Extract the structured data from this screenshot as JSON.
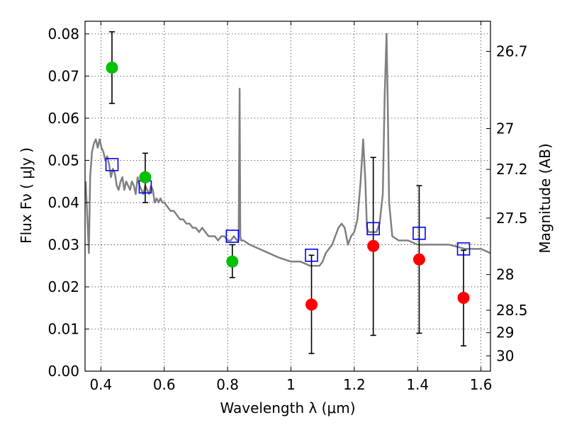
{
  "chart_data": {
    "type": "scatter",
    "xlabel": "Wavelength  λ (μm)",
    "ylabel": "Flux  Fν  ( μJy )",
    "ylabel_right": "Magnitude (AB)",
    "xlim": [
      0.35,
      1.63
    ],
    "ylim": [
      0.0,
      0.083
    ],
    "grid": true,
    "x_ticks": [
      {
        "value": 0.4,
        "label": "0.4"
      },
      {
        "value": 0.6,
        "label": "0.6"
      },
      {
        "value": 0.8,
        "label": "0.8"
      },
      {
        "value": 1.0,
        "label": "1"
      },
      {
        "value": 1.2,
        "label": "1.2"
      },
      {
        "value": 1.4,
        "label": "1.4"
      },
      {
        "value": 1.6,
        "label": "1.6"
      }
    ],
    "y_ticks": [
      {
        "value": 0.0,
        "label": "0.00"
      },
      {
        "value": 0.01,
        "label": "0.01"
      },
      {
        "value": 0.02,
        "label": "0.02"
      },
      {
        "value": 0.03,
        "label": "0.03"
      },
      {
        "value": 0.04,
        "label": "0.04"
      },
      {
        "value": 0.05,
        "label": "0.05"
      },
      {
        "value": 0.06,
        "label": "0.06"
      },
      {
        "value": 0.07,
        "label": "0.07"
      },
      {
        "value": 0.08,
        "label": "0.08"
      }
    ],
    "right_ticks": [
      {
        "mag": 26.7,
        "label": "26.7"
      },
      {
        "mag": 27.0,
        "label": "27"
      },
      {
        "mag": 27.2,
        "label": "27.2"
      },
      {
        "mag": 27.5,
        "label": "27.5"
      },
      {
        "mag": 28.0,
        "label": "28"
      },
      {
        "mag": 28.5,
        "label": "28.5"
      },
      {
        "mag": 29.0,
        "label": "29"
      },
      {
        "mag": 30.0,
        "label": "30"
      }
    ],
    "series": [
      {
        "kind": "line",
        "color": "#808080",
        "x": [
          0.352,
          0.358,
          0.362,
          0.366,
          0.372,
          0.378,
          0.384,
          0.39,
          0.396,
          0.402,
          0.408,
          0.414,
          0.42,
          0.426,
          0.432,
          0.438,
          0.444,
          0.45,
          0.456,
          0.462,
          0.468,
          0.474,
          0.48,
          0.486,
          0.492,
          0.498,
          0.504,
          0.51,
          0.516,
          0.522,
          0.528,
          0.534,
          0.54,
          0.546,
          0.552,
          0.558,
          0.564,
          0.57,
          0.576,
          0.582,
          0.588,
          0.594,
          0.6,
          0.61,
          0.62,
          0.63,
          0.64,
          0.65,
          0.66,
          0.67,
          0.68,
          0.69,
          0.7,
          0.71,
          0.72,
          0.73,
          0.74,
          0.75,
          0.76,
          0.77,
          0.78,
          0.79,
          0.8,
          0.81,
          0.82,
          0.83,
          0.835,
          0.838,
          0.84,
          0.843,
          0.85,
          0.87,
          0.9,
          0.93,
          0.96,
          1.0,
          1.03,
          1.06,
          1.09,
          1.1,
          1.11,
          1.13,
          1.15,
          1.16,
          1.17,
          1.18,
          1.19,
          1.2,
          1.21,
          1.22,
          1.228,
          1.235,
          1.24,
          1.245,
          1.25,
          1.26,
          1.27,
          1.28,
          1.29,
          1.296,
          1.302,
          1.306,
          1.31,
          1.32,
          1.34,
          1.37,
          1.4,
          1.45,
          1.5,
          1.55,
          1.6,
          1.63
        ],
        "y": [
          0.045,
          0.035,
          0.028,
          0.046,
          0.052,
          0.054,
          0.055,
          0.053,
          0.055,
          0.053,
          0.052,
          0.05,
          0.051,
          0.049,
          0.046,
          0.048,
          0.047,
          0.044,
          0.043,
          0.045,
          0.046,
          0.043,
          0.045,
          0.044,
          0.043,
          0.045,
          0.044,
          0.042,
          0.046,
          0.044,
          0.043,
          0.042,
          0.044,
          0.043,
          0.042,
          0.044,
          0.043,
          0.04,
          0.041,
          0.04,
          0.041,
          0.04,
          0.04,
          0.039,
          0.038,
          0.038,
          0.037,
          0.036,
          0.036,
          0.035,
          0.035,
          0.034,
          0.034,
          0.033,
          0.034,
          0.033,
          0.032,
          0.032,
          0.032,
          0.031,
          0.032,
          0.032,
          0.031,
          0.031,
          0.032,
          0.031,
          0.031,
          0.067,
          0.032,
          0.031,
          0.031,
          0.03,
          0.029,
          0.028,
          0.027,
          0.026,
          0.026,
          0.025,
          0.025,
          0.026,
          0.028,
          0.03,
          0.034,
          0.035,
          0.034,
          0.03,
          0.032,
          0.033,
          0.036,
          0.045,
          0.055,
          0.045,
          0.034,
          0.033,
          0.033,
          0.033,
          0.033,
          0.035,
          0.042,
          0.065,
          0.08,
          0.062,
          0.04,
          0.032,
          0.031,
          0.031,
          0.03,
          0.03,
          0.03,
          0.029,
          0.029,
          0.028
        ]
      },
      {
        "kind": "markers",
        "marker": "open-square",
        "color": "#0000ff",
        "x": [
          0.435,
          0.54,
          0.815,
          1.065,
          1.26,
          1.405,
          1.545
        ],
        "y": [
          0.049,
          0.0437,
          0.032,
          0.0275,
          0.0338,
          0.0327,
          0.029
        ]
      },
      {
        "kind": "markers",
        "marker": "filled-circle",
        "color": "#00c000",
        "x": [
          0.435,
          0.54,
          0.815
        ],
        "y": [
          0.072,
          0.046,
          0.026
        ],
        "err_low": [
          0.0635,
          0.04,
          0.0222
        ],
        "err_high": [
          0.0805,
          0.0517,
          0.03
        ]
      },
      {
        "kind": "markers",
        "marker": "filled-circle",
        "color": "#ff0000",
        "x": [
          1.065,
          1.26,
          1.405,
          1.545
        ],
        "y": [
          0.0158,
          0.0297,
          0.0265,
          0.0174
        ],
        "err_low": [
          0.0042,
          0.0085,
          0.009,
          0.006
        ],
        "err_high": [
          0.0275,
          0.0507,
          0.044,
          0.0287
        ]
      }
    ]
  }
}
